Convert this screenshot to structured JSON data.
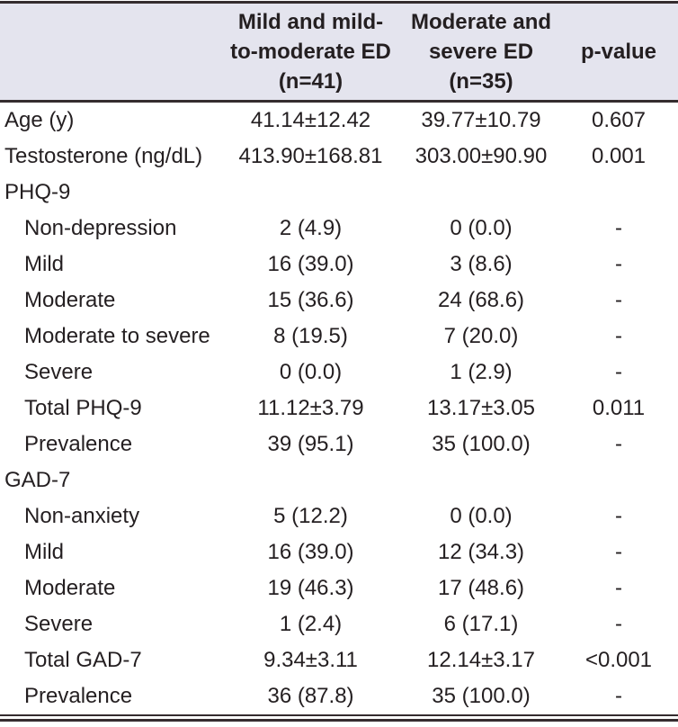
{
  "colors": {
    "header_bg": "#e4e4ee",
    "rule": "#352c2f",
    "text": "#241f21",
    "page_bg": "#ffffff"
  },
  "table": {
    "columns": [
      {
        "label": ""
      },
      {
        "label": "Mild and mild-\nto-moderate ED\n(n=41)"
      },
      {
        "label": "Moderate and\nsevere ED\n(n=35)"
      },
      {
        "label": "p-value"
      }
    ],
    "rows": [
      {
        "label": "Age (y)",
        "indent": false,
        "c1": "41.14±12.42",
        "c2": "39.77±10.79",
        "p": "0.607"
      },
      {
        "label": "Testosterone (ng/dL)",
        "indent": false,
        "c1": "413.90±168.81",
        "c2": "303.00±90.90",
        "p": "0.001"
      },
      {
        "label": "PHQ-9",
        "indent": false,
        "c1": "",
        "c2": "",
        "p": ""
      },
      {
        "label": "Non-depression",
        "indent": true,
        "c1": "2 (4.9)",
        "c2": "0 (0.0)",
        "p": "-"
      },
      {
        "label": "Mild",
        "indent": true,
        "c1": "16 (39.0)",
        "c2": "3 (8.6)",
        "p": "-"
      },
      {
        "label": "Moderate",
        "indent": true,
        "c1": "15 (36.6)",
        "c2": "24 (68.6)",
        "p": "-"
      },
      {
        "label": "Moderate to severe",
        "indent": true,
        "c1": "8 (19.5)",
        "c2": "7 (20.0)",
        "p": "-"
      },
      {
        "label": "Severe",
        "indent": true,
        "c1": "0 (0.0)",
        "c2": "1 (2.9)",
        "p": "-"
      },
      {
        "label": "Total PHQ-9",
        "indent": true,
        "c1": "11.12±3.79",
        "c2": "13.17±3.05",
        "p": "0.011"
      },
      {
        "label": "Prevalence",
        "indent": true,
        "c1": "39 (95.1)",
        "c2": "35 (100.0)",
        "p": "-"
      },
      {
        "label": "GAD-7",
        "indent": false,
        "c1": "",
        "c2": "",
        "p": ""
      },
      {
        "label": "Non-anxiety",
        "indent": true,
        "c1": "5 (12.2)",
        "c2": "0 (0.0)",
        "p": "-"
      },
      {
        "label": "Mild",
        "indent": true,
        "c1": "16 (39.0)",
        "c2": "12 (34.3)",
        "p": "-"
      },
      {
        "label": "Moderate",
        "indent": true,
        "c1": "19 (46.3)",
        "c2": "17 (48.6)",
        "p": "-"
      },
      {
        "label": "Severe",
        "indent": true,
        "c1": "1 (2.4)",
        "c2": "6 (17.1)",
        "p": "-"
      },
      {
        "label": "Total GAD-7",
        "indent": true,
        "c1": "9.34±3.11",
        "c2": "12.14±3.17",
        "p": "<0.001"
      },
      {
        "label": "Prevalence",
        "indent": true,
        "c1": "36 (87.8)",
        "c2": "35 (100.0)",
        "p": "-"
      }
    ]
  }
}
